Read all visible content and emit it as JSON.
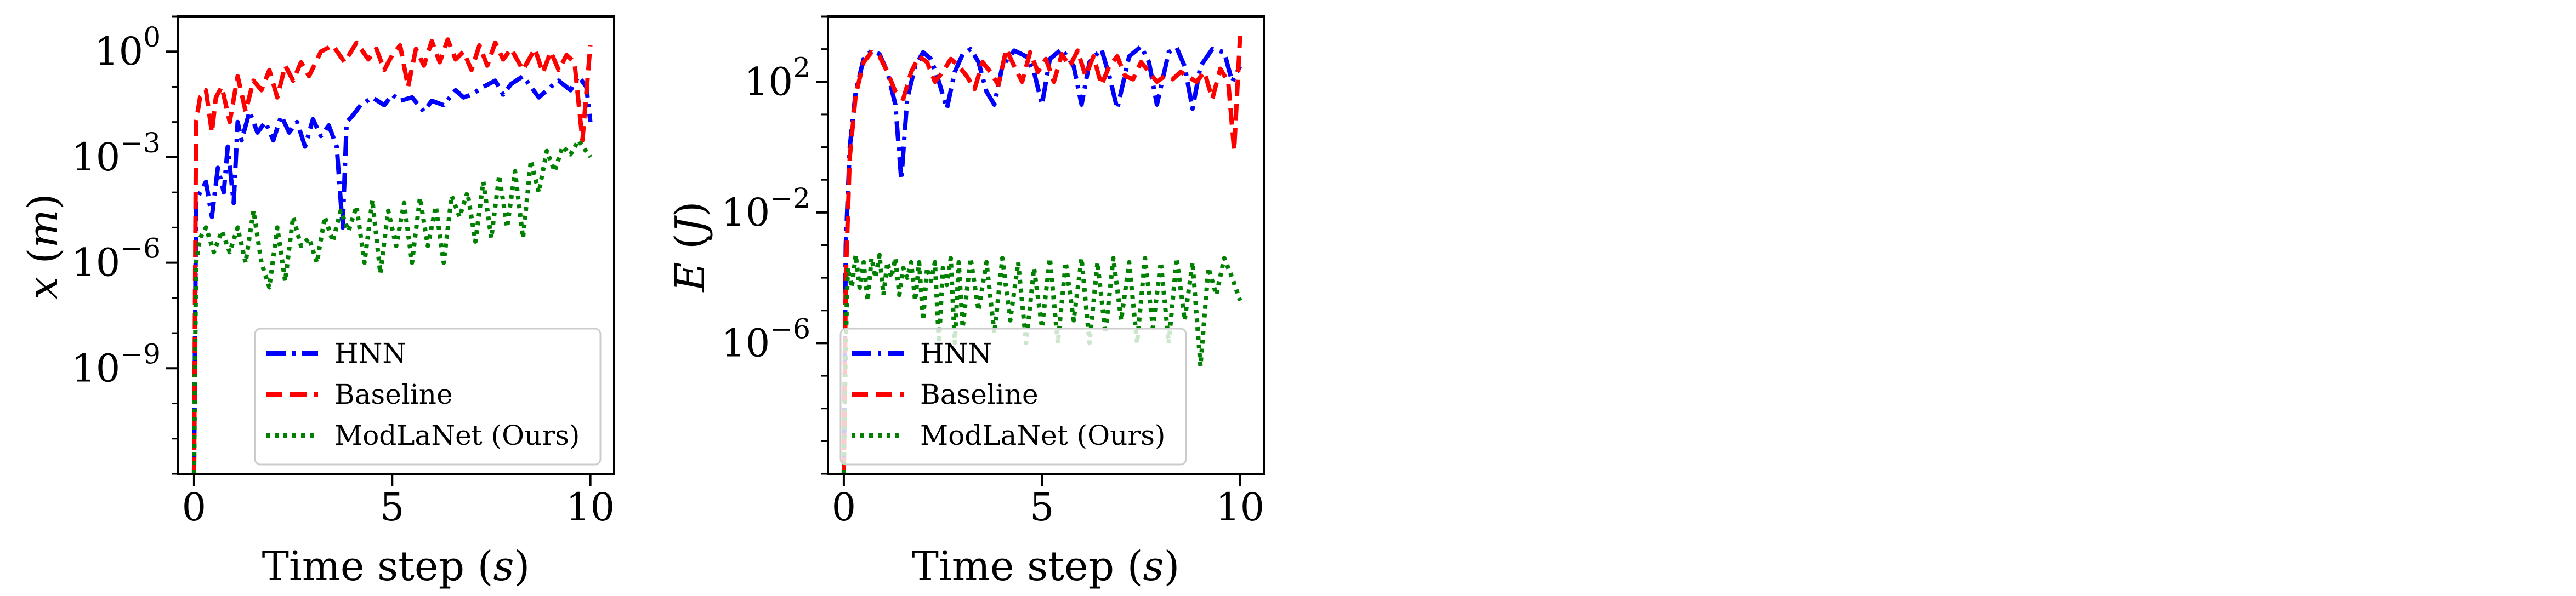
{
  "figure": {
    "background": "#ffffff"
  },
  "chart_data": [
    {
      "type": "line",
      "xlabel": "Time step (s)",
      "ylabel": "x (m)",
      "y_scale": "log",
      "xlim": [
        -0.4,
        10.6
      ],
      "ylim": [
        1e-12,
        10
      ],
      "xticks": [
        0,
        5,
        10
      ],
      "xtick_labels": [
        "0",
        "5",
        "10"
      ],
      "yticks": [
        1,
        0.001,
        1e-06,
        1e-09
      ],
      "ytick_labels": [
        "10^0",
        "10^-3",
        "10^-6",
        "10^-9"
      ],
      "grid": false,
      "legend_position": "lower-right",
      "series": [
        {
          "name": "HNN",
          "color": "#0000ff",
          "style": "dashdot",
          "x": [
            0,
            0.05,
            0.15,
            0.3,
            0.45,
            0.6,
            0.75,
            0.85,
            1.0,
            1.1,
            1.2,
            1.4,
            1.6,
            1.8,
            2.0,
            2.2,
            2.4,
            2.6,
            2.8,
            3.0,
            3.2,
            3.4,
            3.6,
            3.75,
            3.85,
            4.0,
            4.2,
            4.5,
            4.8,
            5.0,
            5.2,
            5.5,
            5.8,
            6.0,
            6.3,
            6.6,
            6.8,
            7.0,
            7.3,
            7.6,
            7.8,
            8.0,
            8.3,
            8.5,
            8.7,
            9.0,
            9.2,
            9.5,
            9.7,
            9.9,
            10.0
          ],
          "y": [
            1e-12,
            5e-05,
            0.0001,
            0.0002,
            2e-05,
            0.0005,
            0.0001,
            0.002,
            5e-05,
            0.01,
            0.003,
            0.02,
            0.005,
            0.01,
            0.003,
            0.015,
            0.005,
            0.01,
            0.002,
            0.012,
            0.004,
            0.008,
            0.002,
            1e-05,
            0.01,
            0.015,
            0.03,
            0.05,
            0.03,
            0.06,
            0.04,
            0.05,
            0.02,
            0.04,
            0.03,
            0.08,
            0.05,
            0.06,
            0.1,
            0.15,
            0.06,
            0.12,
            0.2,
            0.1,
            0.05,
            0.1,
            0.15,
            0.08,
            0.2,
            0.1,
            0.01
          ]
        },
        {
          "name": "Baseline",
          "color": "#ff0000",
          "style": "dashed",
          "x": [
            0,
            0.05,
            0.15,
            0.3,
            0.45,
            0.55,
            0.7,
            0.9,
            1.1,
            1.3,
            1.5,
            1.7,
            1.9,
            2.1,
            2.3,
            2.5,
            2.7,
            2.9,
            3.2,
            3.5,
            3.8,
            4.1,
            4.4,
            4.6,
            4.8,
            5.0,
            5.2,
            5.4,
            5.6,
            5.8,
            6.0,
            6.2,
            6.4,
            6.6,
            6.8,
            7.0,
            7.2,
            7.4,
            7.6,
            7.8,
            8.0,
            8.3,
            8.6,
            8.8,
            9.0,
            9.2,
            9.4,
            9.6,
            9.8,
            10.0
          ],
          "y": [
            1e-12,
            0.01,
            0.05,
            0.08,
            0.005,
            0.05,
            0.1,
            0.01,
            0.2,
            0.02,
            0.15,
            0.08,
            0.3,
            0.05,
            0.4,
            0.15,
            0.5,
            0.2,
            1.0,
            1.5,
            0.5,
            1.8,
            0.6,
            1.2,
            0.3,
            0.8,
            1.5,
            0.1,
            1.2,
            0.4,
            2.0,
            0.5,
            2.2,
            0.6,
            1.0,
            0.3,
            1.5,
            0.4,
            1.8,
            0.6,
            1.2,
            0.3,
            1.2,
            0.25,
            1.0,
            0.3,
            0.8,
            0.5,
            0.003,
            1.5
          ]
        },
        {
          "name": "ModLaNet (Ours)",
          "color": "#008000",
          "style": "dotted",
          "x": [
            0,
            0.05,
            0.15,
            0.3,
            0.5,
            0.7,
            0.9,
            1.1,
            1.3,
            1.5,
            1.7,
            1.9,
            2.1,
            2.3,
            2.5,
            2.7,
            2.9,
            3.1,
            3.3,
            3.5,
            3.7,
            3.9,
            4.1,
            4.3,
            4.5,
            4.7,
            4.9,
            5.1,
            5.3,
            5.5,
            5.7,
            5.9,
            6.1,
            6.3,
            6.5,
            6.7,
            6.9,
            7.1,
            7.3,
            7.5,
            7.7,
            7.9,
            8.1,
            8.3,
            8.5,
            8.7,
            8.9,
            9.1,
            9.3,
            9.5,
            9.7,
            10.0
          ],
          "y": [
            1e-12,
            1e-06,
            5e-06,
            1e-05,
            2e-06,
            8e-06,
            2e-06,
            1e-05,
            1e-06,
            3e-05,
            1e-06,
            2e-07,
            1e-05,
            3e-07,
            2e-05,
            3e-06,
            5e-06,
            1e-06,
            2e-05,
            4e-06,
            3e-05,
            8e-06,
            4e-05,
            1e-06,
            6e-05,
            5e-07,
            3e-05,
            3e-06,
            5e-05,
            1e-06,
            7e-05,
            3e-06,
            4e-05,
            1e-06,
            8e-05,
            2e-05,
            0.0001,
            4e-06,
            0.0002,
            5e-06,
            0.0003,
            1e-05,
            0.0004,
            5e-06,
            0.0008,
            0.0001,
            0.0015,
            0.0004,
            0.002,
            0.0012,
            0.003,
            0.001
          ]
        }
      ],
      "legend": [
        "HNN",
        "Baseline",
        "ModLaNet (Ours)"
      ]
    },
    {
      "type": "line",
      "xlabel": "Time step (s)",
      "ylabel": "E (J)",
      "y_scale": "log",
      "xlim": [
        -0.4,
        10.6
      ],
      "ylim": [
        1e-10,
        10000
      ],
      "xticks": [
        0,
        5,
        10
      ],
      "xtick_labels": [
        "0",
        "5",
        "10"
      ],
      "yticks": [
        100,
        0.01,
        1e-06
      ],
      "ytick_labels": [
        "10^2",
        "10^-2",
        "10^-6"
      ],
      "grid": false,
      "legend_position": "lower-left",
      "series": [
        {
          "name": "HNN",
          "color": "#0000ff",
          "style": "dashdot",
          "x": [
            0,
            0.05,
            0.15,
            0.3,
            0.5,
            0.7,
            0.9,
            1.1,
            1.3,
            1.45,
            1.6,
            1.8,
            2.0,
            2.2,
            2.4,
            2.6,
            2.8,
            3.0,
            3.2,
            3.4,
            3.6,
            3.8,
            4.0,
            4.3,
            4.6,
            4.8,
            5.0,
            5.2,
            5.5,
            5.8,
            6.0,
            6.2,
            6.5,
            6.7,
            6.9,
            7.2,
            7.5,
            7.7,
            7.9,
            8.2,
            8.4,
            8.6,
            8.8,
            9.0,
            9.3,
            9.6,
            9.8,
            10.0
          ],
          "y": [
            1e-10,
            0.001,
            1.0,
            50,
            500,
            900,
            700,
            200,
            20,
            0.1,
            30,
            300,
            800,
            500,
            100,
            15,
            200,
            700,
            1000,
            400,
            50,
            20,
            300,
            900,
            600,
            200,
            20,
            500,
            1000,
            300,
            20,
            400,
            1000,
            150,
            15,
            600,
            1200,
            400,
            20,
            800,
            1100,
            300,
            15,
            300,
            1000,
            800,
            100,
            300
          ]
        },
        {
          "name": "Baseline",
          "color": "#ff0000",
          "style": "dashed",
          "x": [
            0,
            0.05,
            0.15,
            0.3,
            0.5,
            0.7,
            0.9,
            1.1,
            1.3,
            1.5,
            1.7,
            1.9,
            2.1,
            2.3,
            2.5,
            2.7,
            2.9,
            3.1,
            3.3,
            3.5,
            3.7,
            3.9,
            4.1,
            4.3,
            4.5,
            4.7,
            4.9,
            5.1,
            5.3,
            5.5,
            5.7,
            5.9,
            6.1,
            6.3,
            6.5,
            6.7,
            6.9,
            7.1,
            7.3,
            7.5,
            7.7,
            7.9,
            8.1,
            8.3,
            8.5,
            8.7,
            8.9,
            9.1,
            9.3,
            9.5,
            9.7,
            9.85,
            10.0
          ],
          "y": [
            1e-10,
            0.0001,
            0.5,
            40,
            400,
            800,
            600,
            200,
            50,
            30,
            200,
            600,
            400,
            100,
            200,
            500,
            300,
            150,
            60,
            400,
            200,
            80,
            1000,
            300,
            100,
            800,
            200,
            500,
            100,
            700,
            300,
            900,
            150,
            600,
            80,
            300,
            600,
            150,
            120,
            400,
            200,
            100,
            150,
            120,
            200,
            140,
            100,
            200,
            30,
            250,
            100,
            0.8,
            2500
          ]
        },
        {
          "name": "ModLaNet (Ours)",
          "color": "#008000",
          "style": "dotted",
          "x": [
            0,
            0.05,
            0.1,
            0.2,
            0.3,
            0.4,
            0.5,
            0.6,
            0.7,
            0.8,
            0.9,
            1.0,
            1.1,
            1.2,
            1.3,
            1.4,
            1.5,
            1.6,
            1.7,
            1.8,
            1.9,
            2.0,
            2.1,
            2.2,
            2.3,
            2.4,
            2.5,
            2.6,
            2.7,
            2.8,
            2.9,
            3.0,
            3.2,
            3.4,
            3.6,
            3.8,
            4.0,
            4.2,
            4.4,
            4.6,
            4.8,
            5.0,
            5.2,
            5.4,
            5.6,
            5.8,
            6.0,
            6.2,
            6.4,
            6.6,
            6.8,
            7.0,
            7.2,
            7.4,
            7.6,
            7.8,
            8.0,
            8.2,
            8.4,
            8.6,
            8.8,
            9.0,
            9.2,
            9.4,
            9.6,
            9.8,
            10.0
          ],
          "y": [
            1e-10,
            1e-06,
            0.0002,
            5e-05,
            0.0005,
            5e-05,
            0.0003,
            2e-05,
            0.0004,
            0.0001,
            0.0005,
            3e-05,
            0.0003,
            0.0001,
            0.0004,
            3e-05,
            0.0002,
            0.0001,
            0.0003,
            2e-05,
            0.0003,
            5e-06,
            0.0002,
            8e-05,
            0.0003,
            1e-06,
            0.0002,
            6e-05,
            0.0004,
            1e-06,
            0.0003,
            3e-06,
            0.0004,
            1e-05,
            0.0003,
            2e-06,
            0.0004,
            5e-06,
            0.0003,
            1e-06,
            0.0002,
            3e-06,
            0.0004,
            1e-06,
            0.0003,
            5e-06,
            0.0004,
            1e-06,
            0.0003,
            2e-06,
            0.0004,
            5e-06,
            0.0003,
            1e-06,
            0.0004,
            3e-06,
            0.0003,
            1e-06,
            0.0004,
            5e-06,
            0.0003,
            2e-07,
            0.0002,
            3e-05,
            0.0004,
            0.0001,
            2e-05
          ]
        }
      ],
      "legend": [
        "HNN",
        "Baseline",
        "ModLaNet (Ours)"
      ]
    }
  ]
}
